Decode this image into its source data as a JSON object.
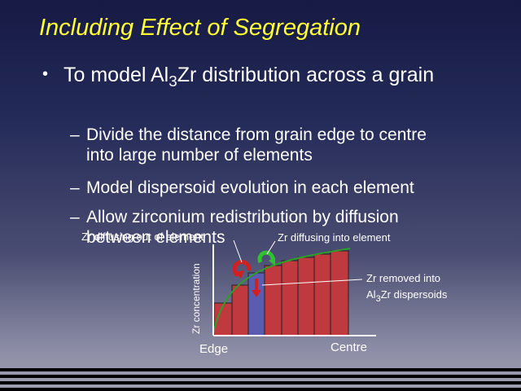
{
  "title": "Including Effect of Segregation",
  "bullet_marker": "•",
  "bullet": {
    "before": "To model Al",
    "subscript": "3",
    "after": "Zr distribution across a grain"
  },
  "sub_bullet_marker": "–",
  "sub_bullets": [
    "Divide the distance from grain edge to centre into large number of elements",
    "Model dispersoid evolution in each element",
    "Allow zirconium redistribution by diffusion between elements"
  ],
  "diagram": {
    "y_axis_label": "Zr concentration",
    "x_start_label": "Edge",
    "x_end_label": "Centre",
    "out_label": "Zr diffusing out of element",
    "in_label": "Zr diffusing into element",
    "removed_line1": "Zr removed into",
    "removed_before": "Al",
    "removed_subscript": "3",
    "removed_after": "Zr dispersoids"
  }
}
